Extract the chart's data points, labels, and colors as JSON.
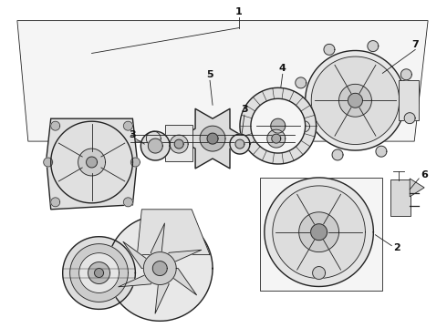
{
  "background_color": "#ffffff",
  "line_color": "#222222",
  "label_color": "#111111",
  "fig_width": 4.9,
  "fig_height": 3.6,
  "dpi": 100,
  "title": ""
}
